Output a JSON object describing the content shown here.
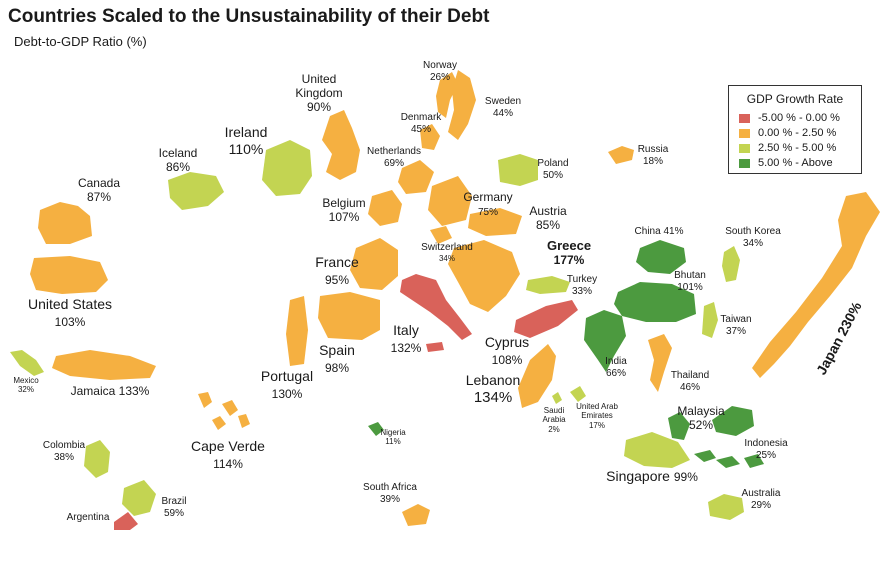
{
  "title": "Countries Scaled to the Unsustainability of their Debt",
  "subtitle": "Debt-to-GDP Ratio (%)",
  "legend": {
    "title": "GDP Growth Rate",
    "items": [
      {
        "label": "-5.00 %  -  0.00 %",
        "color": "#d9625a"
      },
      {
        "label": "0.00 %  -  2.50 %",
        "color": "#f5b041"
      },
      {
        "label": "2.50 %  -  5.00 %",
        "color": "#c3d452"
      },
      {
        "label": "5.00 %  -  Above",
        "color": "#4c9a3f"
      }
    ]
  },
  "countries": {
    "norway": {
      "name": "Norway",
      "debt": "26%"
    },
    "sweden": {
      "name": "Sweden",
      "debt": "44%"
    },
    "denmark": {
      "name": "Denmark",
      "debt": "45%"
    },
    "uk": {
      "name": "United Kingdom",
      "debt": "90%"
    },
    "ireland": {
      "name": "Ireland",
      "debt": "110%"
    },
    "iceland": {
      "name": "Iceland",
      "debt": "86%"
    },
    "netherlands": {
      "name": "Netherlands",
      "debt": "69%"
    },
    "poland": {
      "name": "Poland",
      "debt": "50%"
    },
    "russia": {
      "name": "Russia",
      "debt": "18%"
    },
    "canada": {
      "name": "Canada",
      "debt": "87%"
    },
    "belgium": {
      "name": "Belgium",
      "debt": "107%"
    },
    "germany": {
      "name": "Germany",
      "debt": "75%"
    },
    "austria": {
      "name": "Austria",
      "debt": "85%"
    },
    "switzerland": {
      "name": "Switzerland",
      "debt": "34%"
    },
    "greece": {
      "name": "Greece",
      "debt": "177%"
    },
    "france": {
      "name": "France",
      "debt": "95%"
    },
    "china": {
      "name": "China",
      "debt": "41%"
    },
    "south_korea": {
      "name": "South Korea",
      "debt": "34%"
    },
    "japan": {
      "name": "Japan",
      "debt": "230%"
    },
    "turkey": {
      "name": "Turkey",
      "debt": "33%"
    },
    "bhutan": {
      "name": "Bhutan",
      "debt": "101%"
    },
    "taiwan": {
      "name": "Taiwan",
      "debt": "37%"
    },
    "united_states": {
      "name": "United States",
      "debt": "103%"
    },
    "italy": {
      "name": "Italy",
      "debt": "132%"
    },
    "cyprus": {
      "name": "Cyprus",
      "debt": "108%"
    },
    "spain": {
      "name": "Spain",
      "debt": "98%"
    },
    "portugal": {
      "name": "Portugal",
      "debt": "130%"
    },
    "india": {
      "name": "India",
      "debt": "66%"
    },
    "thailand": {
      "name": "Thailand",
      "debt": "46%"
    },
    "mexico": {
      "name": "Mexico",
      "debt": "32%"
    },
    "jamaica": {
      "name": "Jamaica",
      "debt": "133%"
    },
    "lebanon": {
      "name": "Lebanon",
      "debt": "134%"
    },
    "saudi_arabia": {
      "name": "Saudi Arabia",
      "debt": "2%"
    },
    "uae": {
      "name": "United Arab Emirates",
      "debt": "17%"
    },
    "malaysia": {
      "name": "Malaysia",
      "debt": "52%"
    },
    "cape_verde": {
      "name": "Cape Verde",
      "debt": "114%"
    },
    "nigeria": {
      "name": "Nigeria",
      "debt": "11%"
    },
    "indonesia": {
      "name": "Indonesia",
      "debt": "25%"
    },
    "colombia": {
      "name": "Colombia",
      "debt": "38%"
    },
    "singapore": {
      "name": "Singapore",
      "debt": "99%"
    },
    "south_africa": {
      "name": "South Africa",
      "debt": "39%"
    },
    "australia": {
      "name": "Australia",
      "debt": "29%"
    },
    "brazil": {
      "name": "Brazil",
      "debt": "59%"
    },
    "argentina": {
      "name": "Argentina"
    }
  }
}
